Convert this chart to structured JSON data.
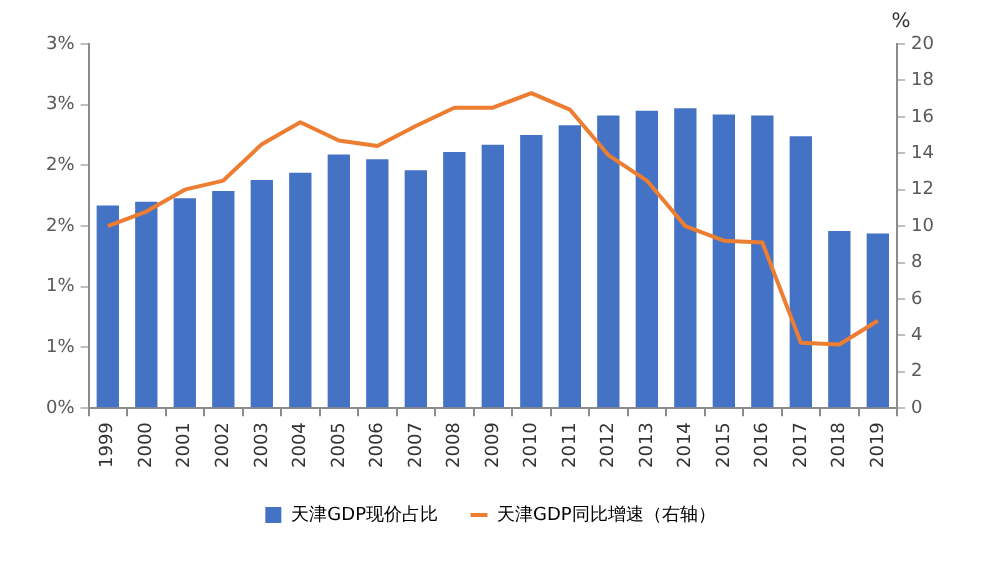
{
  "chart_data": {
    "type": "bar",
    "categories": [
      "1999",
      "2000",
      "2001",
      "2002",
      "2003",
      "2004",
      "2005",
      "2006",
      "2007",
      "2008",
      "2009",
      "2010",
      "2011",
      "2012",
      "2013",
      "2014",
      "2015",
      "2016",
      "2017",
      "2018",
      "2019"
    ],
    "series": [
      {
        "name": "天津GDP现价占比",
        "color": "#4472c4",
        "values": [
          1.67,
          1.7,
          1.73,
          1.79,
          1.88,
          1.94,
          2.09,
          2.05,
          1.96,
          2.11,
          2.17,
          2.25,
          2.33,
          2.41,
          2.45,
          2.47,
          2.42,
          2.41,
          2.24,
          1.46,
          1.44
        ]
      },
      {
        "name": "天津GDP同比增速（右轴）",
        "type": "line",
        "axis": "y2",
        "color": "#ed7d31",
        "values": [
          10.0,
          10.8,
          12.0,
          12.5,
          14.5,
          15.7,
          14.7,
          14.4,
          15.5,
          16.5,
          16.5,
          17.3,
          16.4,
          13.9,
          12.5,
          10.0,
          9.2,
          9.1,
          3.6,
          3.5,
          4.8
        ]
      }
    ],
    "ylim": [
      0,
      3
    ],
    "yticks": [
      {
        "value": 0,
        "label": "0%"
      },
      {
        "value": 0.5,
        "label": "1%"
      },
      {
        "value": 1,
        "label": "1%"
      },
      {
        "value": 1.5,
        "label": "2%"
      },
      {
        "value": 2,
        "label": "2%"
      },
      {
        "value": 2.5,
        "label": "3%"
      },
      {
        "value": 3,
        "label": "3%"
      }
    ],
    "y2lim": [
      0,
      20
    ],
    "y2ticks": [
      0,
      2,
      4,
      6,
      8,
      10,
      12,
      14,
      16,
      18,
      20
    ],
    "y2label": "%",
    "grid": false,
    "legend": "bottom",
    "marker": "none",
    "line_style": "solid"
  }
}
